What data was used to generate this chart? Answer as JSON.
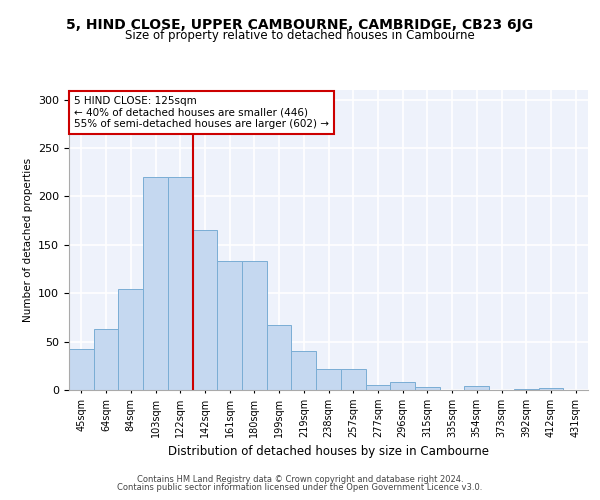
{
  "title1": "5, HIND CLOSE, UPPER CAMBOURNE, CAMBRIDGE, CB23 6JG",
  "title2": "Size of property relative to detached houses in Cambourne",
  "xlabel": "Distribution of detached houses by size in Cambourne",
  "ylabel": "Number of detached properties",
  "categories": [
    "45sqm",
    "64sqm",
    "84sqm",
    "103sqm",
    "122sqm",
    "142sqm",
    "161sqm",
    "180sqm",
    "199sqm",
    "219sqm",
    "238sqm",
    "257sqm",
    "277sqm",
    "296sqm",
    "315sqm",
    "335sqm",
    "354sqm",
    "373sqm",
    "392sqm",
    "412sqm",
    "431sqm"
  ],
  "values": [
    42,
    63,
    104,
    220,
    220,
    165,
    133,
    133,
    67,
    40,
    22,
    22,
    5,
    8,
    3,
    0,
    4,
    0,
    1,
    2,
    0
  ],
  "bar_color": "#c5d8f0",
  "bar_edge_color": "#7aadd4",
  "vline_x": 4.5,
  "vline_color": "#cc0000",
  "annotation_text": "5 HIND CLOSE: 125sqm\n← 40% of detached houses are smaller (446)\n55% of semi-detached houses are larger (602) →",
  "annotation_box_color": "#ffffff",
  "annotation_box_edge": "#cc0000",
  "ylim": [
    0,
    310
  ],
  "yticks": [
    0,
    50,
    100,
    150,
    200,
    250,
    300
  ],
  "footer1": "Contains HM Land Registry data © Crown copyright and database right 2024.",
  "footer2": "Contains public sector information licensed under the Open Government Licence v3.0.",
  "bg_color": "#ffffff",
  "plot_bg_color": "#eef2fb"
}
